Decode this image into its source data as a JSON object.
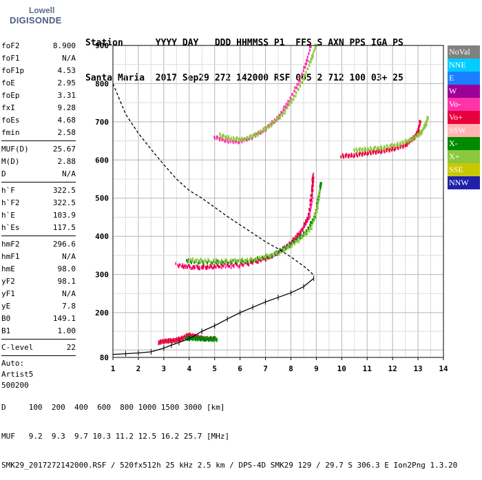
{
  "logo": {
    "line1": "Lowell",
    "line2": "DIGISONDE"
  },
  "header": {
    "row1": "Station      YYYY DAY   DDD HHMMSS P1  FFS S AXN PPS IGA PS",
    "row2": "Santa Maria  2017 Sep29 272 142000 RSF 005 2 712 100 03+ 25"
  },
  "params": {
    "group1": [
      {
        "name": "foF2",
        "value": "8.900"
      },
      {
        "name": "foF1",
        "value": "N/A"
      },
      {
        "name": "foF1p",
        "value": "4.53"
      },
      {
        "name": "foE",
        "value": "2.95"
      },
      {
        "name": "foEp",
        "value": "3.31"
      },
      {
        "name": "fxI",
        "value": "9.28"
      },
      {
        "name": "foEs",
        "value": "4.68"
      },
      {
        "name": "fmin",
        "value": "2.58"
      }
    ],
    "group2": [
      {
        "name": "MUF(D)",
        "value": "25.67"
      },
      {
        "name": "M(D)",
        "value": "2.88"
      },
      {
        "name": "D",
        "value": "N/A"
      }
    ],
    "group3": [
      {
        "name": "h`F",
        "value": "322.5"
      },
      {
        "name": "h`F2",
        "value": "322.5"
      },
      {
        "name": "h`E",
        "value": "103.9"
      },
      {
        "name": "h`Es",
        "value": "117.5"
      }
    ],
    "group4": [
      {
        "name": "hmF2",
        "value": "296.6"
      },
      {
        "name": "hmF1",
        "value": "N/A"
      },
      {
        "name": "hmE",
        "value": "98.0"
      },
      {
        "name": "yF2",
        "value": "98.1"
      },
      {
        "name": "yF1",
        "value": "N/A"
      },
      {
        "name": "yE",
        "value": "7.8"
      },
      {
        "name": "B0",
        "value": "149.1"
      },
      {
        "name": "B1",
        "value": "1.00"
      }
    ],
    "group5": [
      {
        "name": "C-level",
        "value": "22"
      }
    ],
    "auto": [
      "Auto:",
      "Artist5",
      "500200"
    ]
  },
  "legend": [
    {
      "label": "NoVal",
      "color": "#808080"
    },
    {
      "label": "NNE",
      "color": "#00ccff"
    },
    {
      "label": "E",
      "color": "#1a80ff"
    },
    {
      "label": "W",
      "color": "#9c0096"
    },
    {
      "label": "Vo-",
      "color": "#ff33aa"
    },
    {
      "label": "Vo+",
      "color": "#e8003c"
    },
    {
      "label": "SSW",
      "color": "#ffb3b3"
    },
    {
      "label": "X-",
      "color": "#008a00"
    },
    {
      "label": "X+",
      "color": "#8cc83c"
    },
    {
      "label": "SSE",
      "color": "#c8c800"
    },
    {
      "label": "NNW",
      "color": "#2020aa"
    }
  ],
  "footer": {
    "line1": "D     100  200  400  600  800 1000 1500 3000 [km]",
    "line2": "MUF   9.2  9.3  9.7 10.3 11.2 12.5 16.2 25.7 [MHz]",
    "line3": "SMK29_2017272142000.RSF / 520fx512h 25 kHz 2.5 km / DPS-4D SMK29 129 / 29.7 S 306.3 E Ion2Png 1.3.20"
  },
  "chart_data": {
    "type": "scatter",
    "xlim": [
      1,
      14
    ],
    "ylim": [
      80,
      900
    ],
    "xticks": [
      "1",
      "2",
      "3",
      "4",
      "5",
      "6",
      "7",
      "8",
      "9",
      "10",
      "11",
      "12",
      "13",
      "14"
    ],
    "yticks": [
      "80",
      "200",
      "300",
      "400",
      "500",
      "600",
      "700",
      "800",
      "900"
    ],
    "grid": true,
    "series": [
      {
        "name": "Vo-",
        "color": "#ff33aa",
        "points": [
          [
            3.5,
            325
          ],
          [
            4.2,
            318
          ],
          [
            5,
            320
          ],
          [
            6,
            322
          ],
          [
            7,
            340
          ],
          [
            7.6,
            360
          ],
          [
            8.1,
            388
          ],
          [
            8.5,
            420
          ],
          [
            8.75,
            455
          ],
          [
            8.85,
            500
          ],
          [
            8.9,
            560
          ]
        ]
      },
      {
        "name": "Vo+",
        "color": "#e8003c",
        "points": [
          [
            3.6,
            322
          ],
          [
            4.5,
            318
          ],
          [
            5.2,
            323
          ],
          [
            6.3,
            328
          ],
          [
            7.2,
            345
          ],
          [
            7.9,
            375
          ],
          [
            8.4,
            410
          ],
          [
            8.7,
            450
          ],
          [
            8.85,
            520
          ],
          [
            8.88,
            555
          ]
        ]
      },
      {
        "name": "X-",
        "color": "#008a00",
        "points": [
          [
            3.9,
            335
          ],
          [
            4.6,
            332
          ],
          [
            5.5,
            333
          ],
          [
            6.4,
            335
          ],
          [
            7.3,
            350
          ],
          [
            8,
            378
          ],
          [
            8.6,
            410
          ],
          [
            8.95,
            450
          ],
          [
            9.1,
            500
          ],
          [
            9.2,
            540
          ]
        ]
      },
      {
        "name": "X+",
        "color": "#8cc83c",
        "points": [
          [
            4,
            338
          ],
          [
            4.8,
            336
          ],
          [
            5.8,
            336
          ],
          [
            6.7,
            340
          ],
          [
            7.6,
            358
          ],
          [
            8.3,
            388
          ],
          [
            8.8,
            420
          ],
          [
            9.05,
            470
          ],
          [
            9.15,
            520
          ]
        ]
      },
      {
        "name": "Vo- upper",
        "color": "#ff33aa",
        "points": [
          [
            5,
            660
          ],
          [
            5.5,
            650
          ],
          [
            6,
            648
          ],
          [
            6.5,
            660
          ],
          [
            7,
            680
          ],
          [
            7.5,
            710
          ],
          [
            7.9,
            750
          ],
          [
            8.3,
            800
          ],
          [
            8.6,
            850
          ],
          [
            8.8,
            900
          ]
        ]
      },
      {
        "name": "X+ upper",
        "color": "#8cc83c",
        "points": [
          [
            5.2,
            665
          ],
          [
            5.7,
            655
          ],
          [
            6.2,
            654
          ],
          [
            6.7,
            668
          ],
          [
            7.2,
            690
          ],
          [
            7.7,
            720
          ],
          [
            8.1,
            760
          ],
          [
            8.5,
            810
          ],
          [
            8.8,
            860
          ],
          [
            9,
            900
          ]
        ]
      },
      {
        "name": "Vo+ far",
        "color": "#e8003c",
        "points": [
          [
            10,
            610
          ],
          [
            10.5,
            612
          ],
          [
            11,
            618
          ],
          [
            11.5,
            622
          ],
          [
            12,
            628
          ],
          [
            12.5,
            638
          ],
          [
            12.8,
            655
          ],
          [
            13,
            670
          ],
          [
            13.1,
            700
          ]
        ]
      },
      {
        "name": "X+ far",
        "color": "#8cc83c",
        "points": [
          [
            10.5,
            625
          ],
          [
            11,
            628
          ],
          [
            11.6,
            632
          ],
          [
            12.2,
            640
          ],
          [
            12.7,
            652
          ],
          [
            13.1,
            668
          ],
          [
            13.3,
            690
          ],
          [
            13.4,
            710
          ]
        ]
      },
      {
        "name": "E layer",
        "color": "#e8003c",
        "points": [
          [
            2.8,
            120
          ],
          [
            3.1,
            124
          ],
          [
            3.4,
            125
          ],
          [
            3.7,
            130
          ],
          [
            4,
            140
          ],
          [
            4.3,
            135
          ],
          [
            4.6,
            130
          ],
          [
            5,
            130
          ]
        ]
      },
      {
        "name": "E layer X",
        "color": "#008a00",
        "points": [
          [
            3.9,
            132
          ],
          [
            4.2,
            131
          ],
          [
            4.5,
            130
          ],
          [
            4.8,
            129
          ],
          [
            5.1,
            129
          ]
        ]
      }
    ],
    "profile": [
      [
        1.0,
        800
      ],
      [
        1.5,
        720
      ],
      [
        2,
        670
      ],
      [
        2.5,
        628
      ],
      [
        3,
        588
      ],
      [
        3.5,
        550
      ],
      [
        4,
        520
      ],
      [
        4.5,
        500
      ],
      [
        5,
        476
      ],
      [
        5.5,
        452
      ],
      [
        6,
        430
      ],
      [
        6.5,
        408
      ],
      [
        7,
        386
      ],
      [
        7.5,
        367
      ],
      [
        8,
        346
      ],
      [
        8.5,
        322
      ],
      [
        8.8,
        305
      ],
      [
        8.9,
        297
      ]
    ],
    "trace": [
      [
        1,
        88
      ],
      [
        1.5,
        90
      ],
      [
        2,
        92
      ],
      [
        2.5,
        95
      ],
      [
        3,
        105
      ],
      [
        3.3,
        113
      ],
      [
        3.6,
        120
      ],
      [
        4,
        130
      ],
      [
        4.5,
        150
      ],
      [
        5,
        165
      ],
      [
        5.5,
        183
      ],
      [
        6,
        200
      ],
      [
        6.5,
        214
      ],
      [
        7,
        228
      ],
      [
        7.5,
        240
      ],
      [
        8,
        252
      ],
      [
        8.5,
        268
      ],
      [
        8.9,
        290
      ]
    ]
  }
}
